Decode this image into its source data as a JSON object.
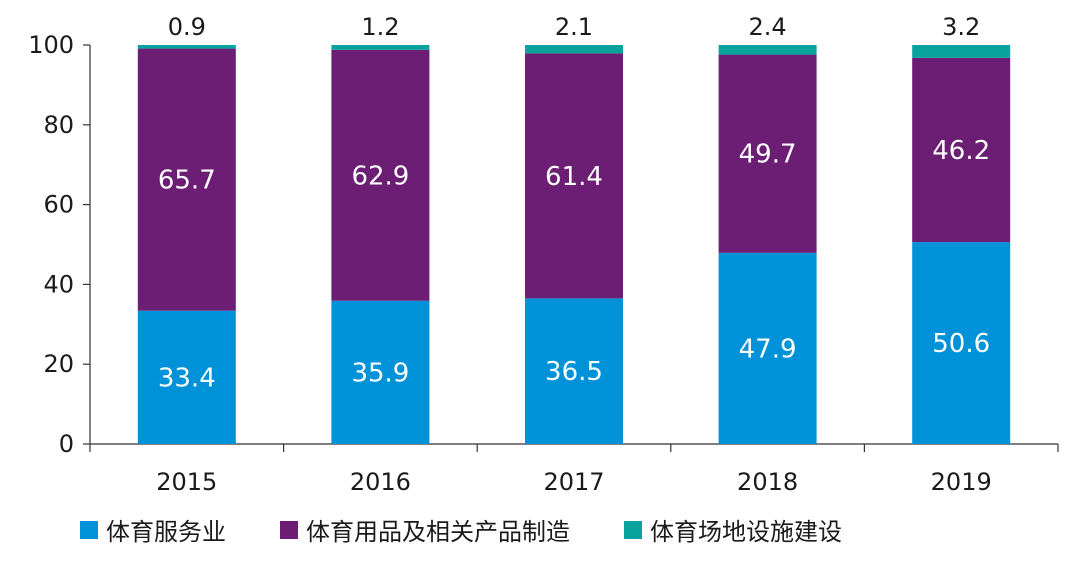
{
  "chart_data": {
    "type": "bar",
    "stacked": true,
    "categories": [
      "2015",
      "2016",
      "2017",
      "2018",
      "2019"
    ],
    "series": [
      {
        "name": "体育服务业",
        "color": "#0092d8",
        "values": [
          33.4,
          35.9,
          36.5,
          47.9,
          50.6
        ]
      },
      {
        "name": "体育用品及相关产品制造",
        "color": "#6b1e73",
        "values": [
          65.7,
          62.9,
          61.4,
          49.7,
          46.2
        ]
      },
      {
        "name": "体育场地设施建设",
        "color": "#07a39c",
        "values": [
          0.9,
          1.2,
          2.1,
          2.4,
          3.2
        ]
      }
    ],
    "y_ticks": [
      "0",
      "20",
      "40",
      "60",
      "80",
      "100"
    ],
    "ylim": [
      0,
      100
    ],
    "grid": false,
    "legend_position": "bottom"
  }
}
